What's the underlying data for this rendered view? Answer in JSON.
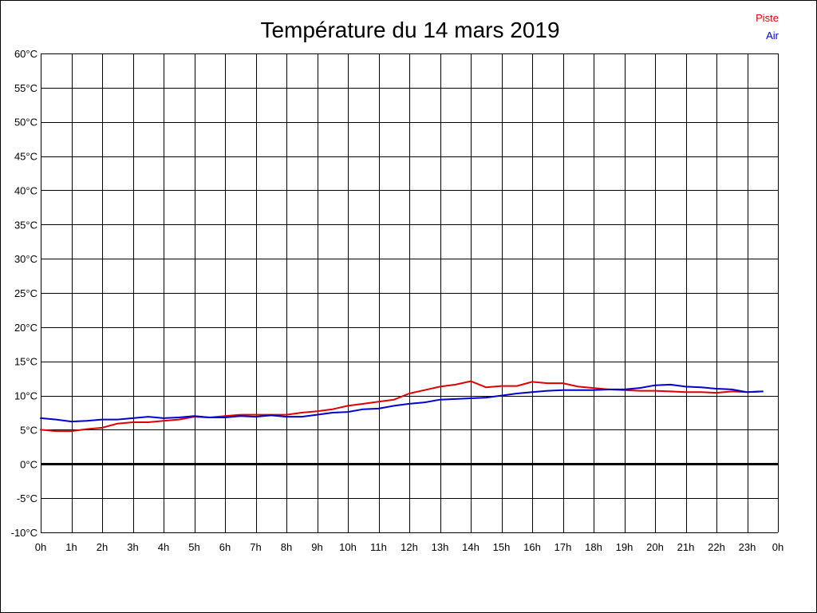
{
  "chart_data": {
    "type": "line",
    "title": "Température du 14 mars 2019",
    "xlabel": "",
    "ylabel": "",
    "x_tick_labels": [
      "0h",
      "1h",
      "2h",
      "3h",
      "4h",
      "5h",
      "6h",
      "7h",
      "8h",
      "9h",
      "10h",
      "11h",
      "12h",
      "13h",
      "14h",
      "15h",
      "16h",
      "17h",
      "18h",
      "19h",
      "20h",
      "21h",
      "22h",
      "23h",
      "0h"
    ],
    "y_ticks": [
      60,
      55,
      50,
      45,
      40,
      35,
      30,
      25,
      20,
      15,
      10,
      5,
      0,
      -5,
      -10
    ],
    "y_tick_labels": [
      "60°C",
      "55°C",
      "50°C",
      "45°C",
      "40°C",
      "35°C",
      "30°C",
      "25°C",
      "20°C",
      "15°C",
      "10°C",
      "5°C",
      "0°C",
      "-5°C",
      "-10°C"
    ],
    "xlim": [
      0,
      24
    ],
    "ylim": [
      -10,
      60
    ],
    "grid": true,
    "zero_line": true,
    "legend_position": "top-right",
    "series": [
      {
        "name": "Piste",
        "color": "#dd0000",
        "x": [
          0,
          0.5,
          1,
          1.5,
          2,
          2.5,
          3,
          3.5,
          4,
          4.5,
          5,
          5.5,
          6,
          6.5,
          7,
          7.5,
          8,
          8.5,
          9,
          9.5,
          10,
          10.5,
          11,
          11.5,
          12,
          12.5,
          13,
          13.5,
          14,
          14.5,
          15,
          15.5,
          16,
          16.5,
          17,
          17.5,
          18,
          18.5,
          19,
          19.5,
          20,
          20.5,
          21,
          21.5,
          22,
          22.5,
          23,
          23.5
        ],
        "values": [
          5.0,
          4.8,
          4.8,
          5.1,
          5.3,
          5.9,
          6.1,
          6.1,
          6.3,
          6.5,
          6.9,
          6.8,
          7.0,
          7.2,
          7.2,
          7.2,
          7.2,
          7.5,
          7.7,
          8.0,
          8.5,
          8.8,
          9.1,
          9.4,
          10.3,
          10.8,
          11.3,
          11.6,
          12.1,
          11.2,
          11.4,
          11.4,
          12.0,
          11.8,
          11.8,
          11.3,
          11.1,
          10.9,
          10.8,
          10.7,
          10.7,
          10.6,
          10.5,
          10.5,
          10.4,
          10.6,
          10.5,
          10.6
        ]
      },
      {
        "name": "Air",
        "color": "#0000cc",
        "x": [
          0,
          0.5,
          1,
          1.5,
          2,
          2.5,
          3,
          3.5,
          4,
          4.5,
          5,
          5.5,
          6,
          6.5,
          7,
          7.5,
          8,
          8.5,
          9,
          9.5,
          10,
          10.5,
          11,
          11.5,
          12,
          12.5,
          13,
          13.5,
          14,
          14.5,
          15,
          15.5,
          16,
          16.5,
          17,
          17.5,
          18,
          18.5,
          19,
          19.5,
          20,
          20.5,
          21,
          21.5,
          22,
          22.5,
          23,
          23.5
        ],
        "values": [
          6.7,
          6.5,
          6.2,
          6.3,
          6.5,
          6.5,
          6.7,
          6.9,
          6.7,
          6.8,
          7.0,
          6.8,
          6.8,
          7.0,
          6.9,
          7.1,
          6.9,
          6.9,
          7.2,
          7.5,
          7.6,
          8.0,
          8.1,
          8.5,
          8.8,
          9.0,
          9.4,
          9.5,
          9.6,
          9.7,
          10.0,
          10.3,
          10.5,
          10.7,
          10.8,
          10.8,
          10.8,
          10.9,
          10.9,
          11.1,
          11.5,
          11.6,
          11.3,
          11.2,
          11.0,
          10.9,
          10.5,
          10.6
        ]
      }
    ]
  }
}
